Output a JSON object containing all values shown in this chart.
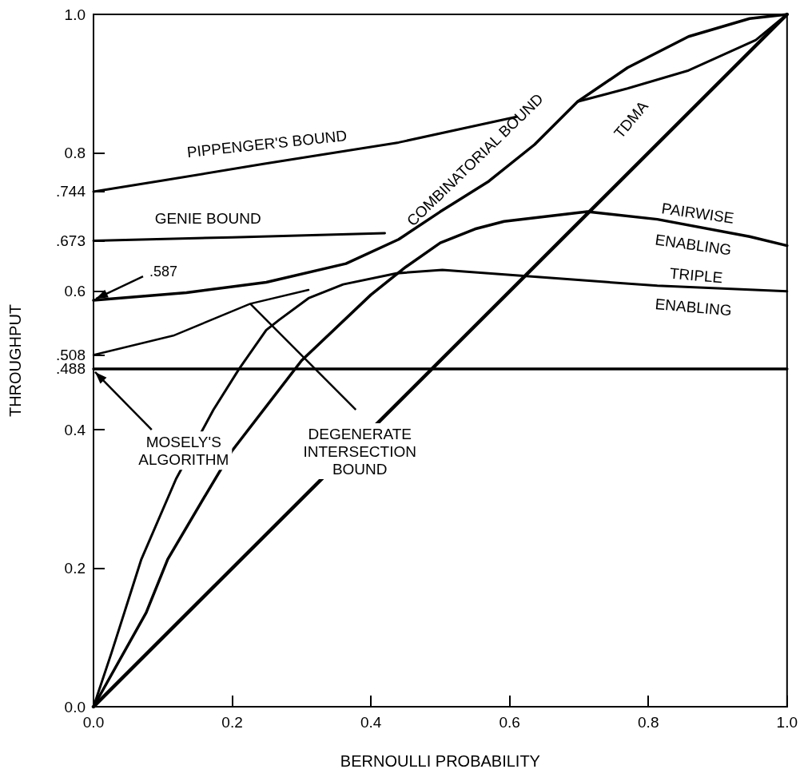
{
  "chart_data": {
    "type": "line",
    "xlabel": "BERNOULLI PROBABILITY",
    "ylabel": "THROUGHPUT",
    "xlim": [
      0,
      1
    ],
    "ylim": [
      0,
      1
    ],
    "xticks": [
      {
        "value": 0,
        "label": "0.0"
      },
      0.2,
      0.4,
      0.6,
      0.8,
      {
        "value": 1,
        "label": "1.0"
      }
    ],
    "yticks": [
      {
        "value": 0,
        "label": "0.0"
      },
      0.2,
      0.4,
      {
        "value": 0.488,
        "label": ".488"
      },
      {
        "value": 0.508,
        "label": ".508"
      },
      0.6,
      {
        "value": 0.673,
        "label": ".673"
      },
      {
        "value": 0.744,
        "label": ".744"
      },
      0.8,
      {
        "value": 1,
        "label": "1.0"
      }
    ],
    "grid": false,
    "legend": false,
    "marker": "none",
    "line_style": "solid",
    "annotations": [
      {
        "text": ".587",
        "x": 0,
        "y": 0.587
      }
    ],
    "series": [
      {
        "name": "PIPPENGER'S BOUND",
        "color": "#000000",
        "x": [
          0,
          0.1,
          0.245,
          0.44,
          0.61,
          0.65,
          0.698,
          0.77,
          0.858,
          0.955,
          1
        ],
        "values": [
          0.744,
          0.76,
          0.784,
          0.815,
          0.852,
          null,
          0.874,
          0.893,
          0.919,
          0.963,
          1
        ]
      },
      {
        "name": "GENIE BOUND",
        "color": "#000000",
        "x": [
          0,
          0.2,
          0.42
        ],
        "values": [
          0.673,
          0.678,
          0.684
        ]
      },
      {
        "name": "COMBINATORIAL BOUND",
        "color": "#000000",
        "x": [
          0,
          0.134,
          0.249,
          0.364,
          0.44,
          0.5,
          0.57,
          0.636,
          0.698,
          0.77,
          0.858,
          0.946,
          1
        ],
        "values": [
          0.587,
          0.598,
          0.613,
          0.64,
          0.675,
          0.715,
          0.759,
          0.812,
          0.874,
          0.923,
          0.968,
          0.994,
          1
        ]
      },
      {
        "name": "TDMA",
        "color": "#000000",
        "x": [
          0,
          1
        ],
        "values": [
          0,
          1
        ]
      },
      {
        "name": "PAIRWISE ENABLING",
        "color": "#000000",
        "x": [
          0,
          0.076,
          0.107,
          0.157,
          0.2,
          0.3,
          0.4,
          0.45,
          0.5,
          0.55,
          0.592,
          0.712,
          0.813,
          0.946,
          1
        ],
        "values": [
          0,
          0.136,
          0.213,
          0.298,
          0.37,
          0.5,
          0.595,
          0.635,
          0.67,
          0.69,
          0.701,
          0.715,
          0.704,
          0.679,
          0.666
        ]
      },
      {
        "name": "TRIPLE ENABLING",
        "color": "#000000",
        "x": [
          0,
          0.026,
          0.069,
          0.119,
          0.173,
          0.21,
          0.249,
          0.268,
          0.31,
          0.36,
          0.437,
          0.503,
          0.636,
          0.813,
          1
        ],
        "values": [
          0,
          0.078,
          0.213,
          0.329,
          0.429,
          0.488,
          0.544,
          0.559,
          0.59,
          0.61,
          0.626,
          0.631,
          0.621,
          0.608,
          0.6
        ]
      },
      {
        "name": "MOSELY'S ALGORITHM",
        "color": "#000000",
        "x": [
          0,
          1
        ],
        "values": [
          0.488,
          0.488
        ]
      },
      {
        "name": "DEGENERATE INTERSECTION BOUND",
        "color": "#000000",
        "x": [
          0,
          0.115,
          0.226,
          0.31
        ],
        "values": [
          0.508,
          0.536,
          0.582,
          0.602
        ]
      }
    ]
  }
}
